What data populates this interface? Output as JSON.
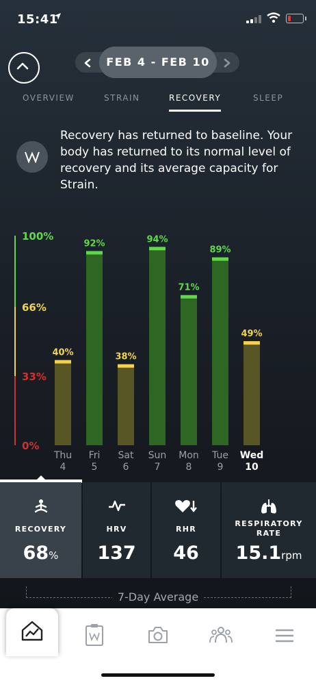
{
  "status_bar": {
    "time": "15:41"
  },
  "header": {
    "date_range": "FEB 4 - FEB 10"
  },
  "tabs": [
    {
      "label": "OVERVIEW",
      "active": false
    },
    {
      "label": "STRAIN",
      "active": false
    },
    {
      "label": "RECOVERY",
      "active": true
    },
    {
      "label": "SLEEP",
      "active": false
    }
  ],
  "message": "Recovery has returned to baseline. Your body has returned to its normal level of recovery and its average capacity for Strain.",
  "chart_data": {
    "type": "bar",
    "categories": [
      "Thu 4",
      "Fri 5",
      "Sat 6",
      "Sun 7",
      "Mon 8",
      "Tue 9",
      "Wed 10"
    ],
    "day_names": [
      "Thu",
      "Fri",
      "Sat",
      "Sun",
      "Mon",
      "Tue",
      "Wed"
    ],
    "day_numbers": [
      "4",
      "5",
      "6",
      "7",
      "8",
      "9",
      "10"
    ],
    "values": [
      40,
      92,
      38,
      94,
      71,
      89,
      49
    ],
    "value_labels": [
      "40%",
      "92%",
      "38%",
      "94%",
      "71%",
      "89%",
      "49%"
    ],
    "y_tick_labels": [
      "100%",
      "66%",
      "33%",
      "0%"
    ],
    "ylim": [
      0,
      100
    ],
    "zones": {
      "green": "#5fd84a",
      "yellow": "#f2d34b",
      "red": "#d0312d"
    },
    "highlighted_category": "Wed 10"
  },
  "stats": [
    {
      "icon": "meditation-icon",
      "label": "RECOVERY",
      "value": "68",
      "unit": "%",
      "active": true
    },
    {
      "icon": "hrv-icon",
      "label": "HRV",
      "value": "137",
      "unit": "",
      "active": false
    },
    {
      "icon": "heart-rate-icon",
      "label": "RHR",
      "value": "46",
      "unit": "",
      "active": false
    },
    {
      "icon": "lungs-icon",
      "label": "RESPIRATORY RATE",
      "value": "15.1",
      "unit": "rpm",
      "active": false
    }
  ],
  "average_label": "7-Day Average",
  "bottom_nav": [
    {
      "icon": "home-chart-icon",
      "active": true
    },
    {
      "icon": "journal-icon",
      "active": false
    },
    {
      "icon": "camera-icon",
      "active": false
    },
    {
      "icon": "community-icon",
      "active": false
    },
    {
      "icon": "menu-icon",
      "active": false
    }
  ]
}
